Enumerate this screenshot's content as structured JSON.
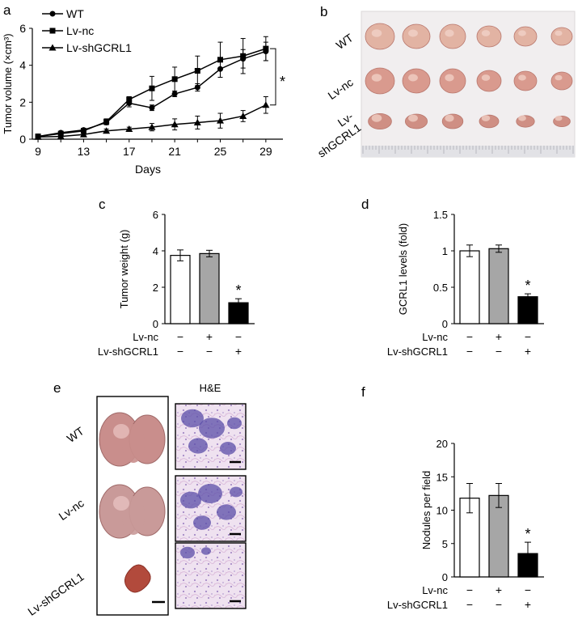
{
  "panels": {
    "a": "a",
    "b": "b",
    "c": "c",
    "d": "d",
    "e": "e",
    "f": "f"
  },
  "chart_data": [
    {
      "panel": "a",
      "type": "line",
      "xlabel": "Days",
      "ylabel": "Tumor volume (×cm³)",
      "xlim": [
        8.5,
        30.5
      ],
      "ylim": [
        0,
        6
      ],
      "xticks": [
        9,
        13,
        17,
        21,
        25,
        29
      ],
      "yticks": [
        0,
        2,
        4,
        6
      ],
      "x": [
        9,
        11,
        13,
        15,
        17,
        19,
        21,
        23,
        25,
        27,
        29
      ],
      "series": [
        {
          "name": "WT",
          "marker": "circle",
          "values": [
            0.15,
            0.35,
            0.5,
            0.9,
            1.95,
            1.7,
            2.45,
            2.8,
            3.8,
            4.35,
            4.75
          ],
          "errors": [
            0.05,
            0.05,
            0.08,
            0.12,
            0.2,
            0.15,
            0.15,
            0.2,
            0.45,
            0.5,
            0.5
          ]
        },
        {
          "name": "Lv-nc",
          "marker": "square",
          "values": [
            0.15,
            0.3,
            0.45,
            0.95,
            2.15,
            2.75,
            3.25,
            3.7,
            4.3,
            4.5,
            4.9
          ],
          "errors": [
            0.05,
            0.05,
            0.08,
            0.15,
            0.15,
            0.65,
            0.65,
            0.8,
            0.95,
            0.95,
            0.65
          ]
        },
        {
          "name": "Lv-shGCRL1",
          "marker": "triangle",
          "values": [
            0.12,
            0.15,
            0.25,
            0.45,
            0.55,
            0.65,
            0.8,
            0.9,
            1.0,
            1.25,
            1.85
          ],
          "errors": [
            0.03,
            0.03,
            0.05,
            0.1,
            0.1,
            0.2,
            0.3,
            0.35,
            0.4,
            0.3,
            0.45
          ]
        }
      ],
      "legend": "top-left",
      "significance": "*"
    },
    {
      "panel": "c",
      "type": "bar",
      "ylabel": "Tumor weight (g)",
      "ylim": [
        0,
        6
      ],
      "yticks": [
        0,
        2,
        4,
        6
      ],
      "values": [
        3.75,
        3.85,
        1.15
      ],
      "errors": [
        0.3,
        0.18,
        0.22
      ],
      "colors": [
        "#ffffff",
        "#a6a6a6",
        "#000000"
      ],
      "significance": [
        null,
        null,
        "*"
      ],
      "conditions": [
        {
          "label": "Lv-nc",
          "signs": [
            "−",
            "+",
            "−"
          ]
        },
        {
          "label": "Lv-shGCRL1",
          "signs": [
            "−",
            "−",
            "+"
          ]
        }
      ]
    },
    {
      "panel": "d",
      "type": "bar",
      "ylabel": "GCRL1  levels (fold)",
      "ylim": [
        0,
        1.5
      ],
      "yticks": [
        0,
        0.5,
        1,
        1.5
      ],
      "values": [
        1.0,
        1.03,
        0.37
      ],
      "errors": [
        0.08,
        0.05,
        0.04
      ],
      "colors": [
        "#ffffff",
        "#a6a6a6",
        "#000000"
      ],
      "significance": [
        null,
        null,
        "*"
      ],
      "conditions": [
        {
          "label": "Lv-nc",
          "signs": [
            "−",
            "+",
            "−"
          ]
        },
        {
          "label": "Lv-shGCRL1",
          "signs": [
            "−",
            "−",
            "+"
          ]
        }
      ]
    },
    {
      "panel": "f",
      "type": "bar",
      "ylabel": "Nodules per field",
      "ylim": [
        0,
        20
      ],
      "yticks": [
        0,
        5,
        10,
        15,
        20
      ],
      "values": [
        11.8,
        12.2,
        3.5
      ],
      "errors": [
        2.2,
        1.8,
        1.7
      ],
      "colors": [
        "#ffffff",
        "#a6a6a6",
        "#000000"
      ],
      "significance": [
        null,
        null,
        "*"
      ],
      "conditions": [
        {
          "label": "Lv-nc",
          "signs": [
            "−",
            "+",
            "−"
          ]
        },
        {
          "label": "Lv-shGCRL1",
          "signs": [
            "−",
            "−",
            "+"
          ]
        }
      ]
    }
  ],
  "photo_b": {
    "rows": [
      {
        "label": "WT",
        "color": "#e2b3a3"
      },
      {
        "label": "Lv-nc",
        "color": "#d99a8e"
      },
      {
        "label": "Lv-\nshGCRL1",
        "color": "#cf8f84"
      }
    ]
  },
  "photo_e": {
    "he_title": "H&E",
    "rows": [
      {
        "label": "WT",
        "lung_color": "#c98e8c"
      },
      {
        "label": "Lv-nc",
        "lung_color": "#c99a99"
      },
      {
        "label": "Lv-shGCRL1",
        "lung_color": "#b24a3c"
      }
    ]
  }
}
